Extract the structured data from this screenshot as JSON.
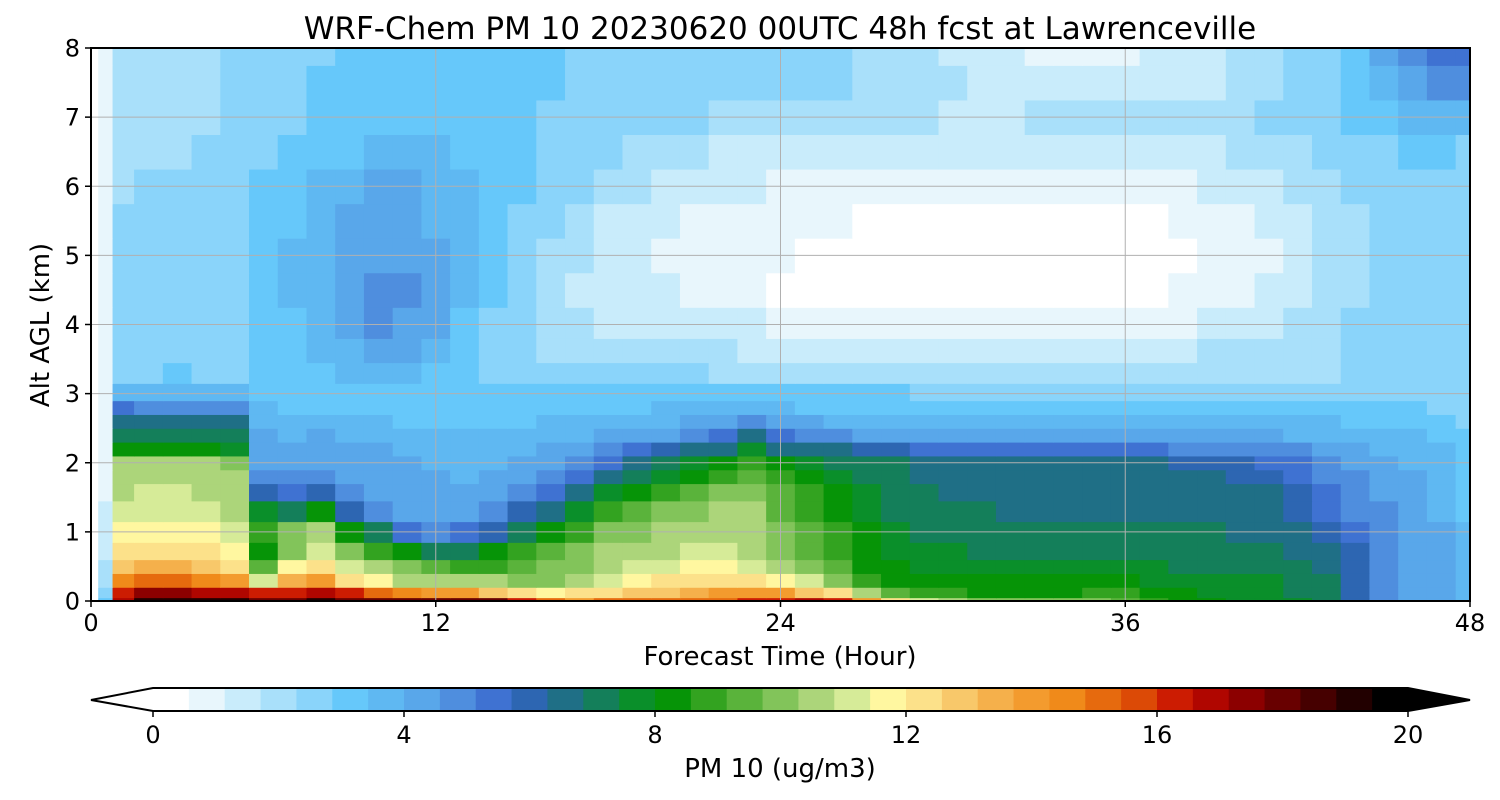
{
  "chart_data": {
    "type": "heatmap",
    "title": "WRF-Chem PM 10  20230620 00UTC 48h fcst at Lawrenceville",
    "xlabel": "Forecast Time (Hour)",
    "ylabel": "Alt AGL (km)",
    "xlim": [
      0,
      48
    ],
    "ylim": [
      0,
      8
    ],
    "xticks": [
      0,
      12,
      24,
      36,
      48
    ],
    "yticks": [
      0,
      1,
      2,
      3,
      4,
      5,
      6,
      7,
      8
    ],
    "grid": true,
    "colorbar": {
      "label": "PM 10  (ug/m3)",
      "orientation": "horizontal",
      "position": "bottom",
      "min": 0,
      "max": 20,
      "ticks": [
        0,
        4,
        8,
        12,
        16,
        20
      ],
      "extend": "both",
      "colors": [
        "#ffffff",
        "#e8f6fc",
        "#c9ecfb",
        "#a9e0fa",
        "#8ad4fa",
        "#66c8fa",
        "#5fb8f2",
        "#59a7ea",
        "#4f8ede",
        "#3f72d2",
        "#2d66b2",
        "#1f6f86",
        "#147f5a",
        "#0a8f2a",
        "#069407",
        "#33a320",
        "#5ab33b",
        "#82c45a",
        "#acd57a",
        "#d6eb98",
        "#fff7a0",
        "#fce18a",
        "#f8c86a",
        "#f5b04b",
        "#f39b2e",
        "#f08a1a",
        "#e66a0e",
        "#dc4a06",
        "#cc1c02",
        "#b00600",
        "#8c0000",
        "#680000",
        "#460000",
        "#220000",
        "#000000"
      ]
    },
    "z_units": "ug/m3",
    "x": [
      0,
      0.5,
      1,
      2,
      3,
      4,
      5,
      6,
      7,
      8,
      9,
      10,
      11,
      12,
      13,
      14,
      15,
      16,
      17,
      18,
      19,
      20,
      21,
      22,
      23,
      24,
      25,
      26,
      27,
      28,
      29,
      30,
      31,
      32,
      33,
      34,
      35,
      36,
      37,
      38,
      39,
      40,
      41,
      42,
      43,
      44,
      45,
      46,
      47,
      48
    ],
    "y": [
      0,
      0.1,
      0.3,
      0.5,
      0.7,
      1.0,
      1.3,
      1.6,
      1.8,
      2.0,
      2.2,
      2.4,
      2.6,
      2.8,
      3.0,
      3.3,
      3.6,
      4.0,
      4.5,
      5.0,
      5.5,
      6.0,
      6.5,
      7.0,
      7.5,
      8.0
    ],
    "z": [
      [
        0.0,
        3.0,
        17.0,
        19.0,
        19.0,
        19.0,
        19.0,
        18.0,
        18.0,
        19.0,
        18.0,
        18.0,
        18.0,
        18.0,
        18.0,
        18.0,
        16.0,
        15.0,
        14.0,
        15.0,
        15.0,
        15.0,
        15.0,
        15.0,
        16.0,
        16.0,
        17.0,
        16.0,
        14.0,
        12.0,
        11.0,
        10.5,
        10.0,
        10.0,
        10.0,
        10.0,
        10.0,
        9.5,
        9.0,
        8.5,
        8.0,
        7.5,
        7.5,
        7.5,
        7.0,
        6.0,
        5.0,
        4.5,
        4.0,
        3.5
      ],
      [
        0.0,
        2.5,
        16.0,
        17.5,
        17.5,
        17.0,
        17.0,
        16.0,
        16.5,
        17.0,
        16.0,
        15.0,
        14.5,
        14.0,
        14.0,
        13.0,
        12.0,
        11.5,
        12.0,
        12.5,
        13.0,
        13.0,
        13.5,
        14.0,
        14.0,
        14.0,
        13.0,
        12.0,
        10.5,
        9.5,
        9.0,
        8.8,
        8.5,
        8.5,
        8.5,
        8.5,
        9.0,
        9.0,
        8.5,
        8.0,
        7.8,
        7.5,
        7.5,
        7.3,
        7.0,
        6.0,
        5.0,
        4.5,
        4.0,
        3.5
      ],
      [
        0.0,
        2.0,
        14.5,
        15.0,
        15.0,
        14.5,
        14.0,
        11.0,
        13.5,
        14.0,
        12.5,
        11.5,
        10.5,
        10.5,
        10.5,
        10.5,
        10.0,
        10.0,
        10.5,
        11.0,
        11.5,
        12.0,
        12.5,
        12.5,
        12.0,
        11.5,
        11.0,
        10.0,
        9.0,
        8.5,
        8.3,
        8.2,
        8.0,
        8.0,
        8.0,
        8.0,
        8.2,
        8.0,
        7.8,
        7.5,
        7.5,
        7.5,
        7.5,
        7.3,
        7.0,
        6.0,
        5.0,
        4.5,
        4.0,
        3.5
      ],
      [
        0.0,
        1.8,
        13.0,
        13.5,
        13.5,
        13.0,
        12.5,
        9.5,
        11.5,
        12.5,
        11.0,
        10.5,
        10.0,
        9.5,
        9.0,
        9.0,
        9.5,
        9.8,
        10.2,
        10.5,
        11.0,
        11.3,
        11.5,
        11.5,
        11.0,
        10.5,
        10.0,
        9.5,
        8.5,
        8.0,
        7.8,
        7.7,
        7.5,
        7.5,
        7.5,
        7.5,
        7.5,
        7.5,
        7.5,
        7.3,
        7.2,
        7.2,
        7.2,
        7.0,
        6.8,
        6.0,
        5.0,
        4.5,
        4.0,
        3.5
      ],
      [
        0.0,
        1.5,
        12.0,
        12.5,
        12.5,
        12.0,
        11.5,
        8.5,
        10.0,
        11.0,
        10.0,
        9.0,
        8.0,
        7.0,
        7.0,
        8.0,
        8.8,
        9.2,
        9.8,
        10.3,
        10.6,
        10.8,
        11.0,
        11.0,
        10.5,
        10.0,
        9.5,
        9.0,
        8.3,
        7.8,
        7.5,
        7.5,
        7.4,
        7.3,
        7.2,
        7.2,
        7.2,
        7.2,
        7.2,
        7.1,
        7.0,
        7.0,
        7.0,
        6.8,
        6.5,
        5.8,
        5.0,
        4.5,
        4.0,
        3.5
      ],
      [
        0.0,
        1.3,
        11.5,
        11.8,
        11.8,
        11.5,
        11.0,
        9.0,
        10.0,
        10.5,
        8.5,
        7.0,
        5.5,
        5.0,
        5.2,
        6.0,
        7.0,
        8.0,
        9.0,
        9.8,
        10.2,
        10.5,
        10.6,
        10.7,
        10.5,
        10.0,
        9.3,
        8.7,
        8.0,
        7.5,
        7.3,
        7.2,
        7.2,
        7.0,
        7.0,
        7.0,
        7.0,
        7.0,
        7.0,
        7.0,
        6.9,
        6.8,
        6.8,
        6.5,
        6.0,
        5.3,
        4.8,
        4.5,
        4.0,
        3.5
      ],
      [
        0.0,
        1.2,
        11.0,
        11.3,
        11.3,
        11.0,
        10.8,
        7.5,
        7.0,
        8.5,
        6.0,
        5.0,
        4.3,
        4.0,
        4.2,
        4.8,
        5.8,
        6.8,
        7.8,
        8.8,
        9.5,
        10.0,
        10.2,
        10.5,
        10.3,
        9.7,
        9.0,
        8.3,
        7.8,
        7.3,
        7.0,
        7.0,
        7.0,
        6.8,
        6.8,
        6.8,
        6.8,
        6.8,
        6.8,
        6.8,
        6.7,
        6.6,
        6.5,
        6.2,
        5.6,
        5.0,
        4.6,
        4.3,
        3.9,
        3.4
      ],
      [
        0.0,
        1.1,
        10.8,
        11.0,
        11.0,
        10.8,
        10.5,
        6.0,
        5.5,
        6.0,
        4.8,
        4.4,
        4.2,
        4.0,
        4.0,
        4.3,
        4.8,
        5.5,
        6.5,
        7.5,
        8.2,
        8.8,
        9.3,
        9.8,
        9.8,
        9.2,
        8.6,
        8.0,
        7.5,
        7.2,
        7.0,
        6.8,
        6.8,
        6.6,
        6.6,
        6.6,
        6.6,
        6.6,
        6.6,
        6.6,
        6.5,
        6.4,
        6.3,
        6.0,
        5.3,
        4.8,
        4.4,
        4.1,
        3.8,
        3.3
      ],
      [
        0.0,
        1.0,
        10.6,
        10.8,
        10.8,
        10.6,
        10.4,
        5.0,
        4.8,
        4.8,
        4.5,
        4.3,
        4.1,
        4.0,
        3.9,
        4.0,
        4.3,
        4.8,
        5.5,
        6.5,
        7.3,
        7.8,
        8.3,
        8.8,
        9.2,
        8.6,
        8.0,
        7.6,
        7.3,
        7.0,
        6.8,
        6.7,
        6.6,
        6.5,
        6.5,
        6.5,
        6.5,
        6.5,
        6.5,
        6.4,
        6.4,
        6.2,
        6.0,
        5.6,
        5.0,
        4.6,
        4.2,
        4.0,
        3.7,
        3.2
      ],
      [
        0.0,
        1.0,
        10.3,
        10.5,
        10.5,
        10.4,
        10.0,
        4.5,
        4.4,
        4.5,
        4.3,
        4.2,
        4.0,
        3.9,
        3.8,
        3.8,
        4.0,
        4.3,
        4.8,
        5.6,
        6.5,
        7.2,
        7.6,
        8.0,
        8.8,
        8.0,
        7.6,
        7.3,
        7.1,
        6.9,
        6.7,
        6.6,
        6.5,
        6.4,
        6.4,
        6.4,
        6.4,
        6.4,
        6.3,
        6.2,
        6.1,
        5.9,
        5.7,
        5.3,
        4.8,
        4.4,
        4.1,
        3.9,
        3.6,
        3.1
      ],
      [
        0.0,
        1.0,
        8.0,
        8.3,
        8.5,
        8.0,
        7.8,
        4.2,
        4.1,
        4.2,
        4.1,
        4.0,
        3.9,
        3.8,
        3.7,
        3.7,
        3.8,
        4.0,
        4.3,
        4.8,
        5.3,
        5.8,
        6.3,
        6.8,
        7.8,
        6.8,
        6.5,
        6.3,
        6.0,
        5.8,
        5.6,
        5.5,
        5.4,
        5.3,
        5.3,
        5.2,
        5.2,
        5.2,
        5.2,
        5.1,
        5.0,
        4.9,
        4.8,
        4.6,
        4.3,
        4.1,
        3.9,
        3.7,
        3.5,
        3.0
      ],
      [
        0.0,
        1.0,
        7.2,
        7.3,
        7.3,
        7.0,
        7.0,
        4.0,
        3.9,
        4.0,
        3.9,
        3.8,
        3.7,
        3.6,
        3.5,
        3.5,
        3.6,
        3.8,
        3.9,
        4.1,
        4.3,
        4.5,
        4.8,
        5.5,
        6.8,
        5.5,
        5.0,
        4.7,
        4.5,
        4.4,
        4.3,
        4.3,
        4.3,
        4.3,
        4.3,
        4.3,
        4.3,
        4.3,
        4.3,
        4.3,
        4.2,
        4.1,
        4.0,
        3.9,
        3.8,
        3.7,
        3.6,
        3.5,
        3.3,
        2.9
      ],
      [
        0.0,
        1.0,
        6.5,
        6.5,
        6.6,
        6.3,
        6.4,
        3.8,
        3.6,
        3.6,
        3.5,
        3.5,
        3.4,
        3.3,
        3.3,
        3.3,
        3.4,
        3.5,
        3.6,
        3.7,
        3.8,
        3.9,
        4.0,
        4.2,
        4.8,
        4.2,
        4.0,
        3.9,
        3.8,
        3.7,
        3.7,
        3.6,
        3.6,
        3.6,
        3.6,
        3.6,
        3.6,
        3.6,
        3.6,
        3.6,
        3.6,
        3.6,
        3.6,
        3.5,
        3.5,
        3.4,
        3.3,
        3.2,
        3.0,
        2.7
      ],
      [
        0.0,
        1.0,
        5.2,
        4.8,
        5.0,
        4.6,
        4.8,
        3.5,
        3.3,
        3.2,
        3.1,
        3.0,
        3.0,
        3.0,
        3.0,
        3.0,
        3.1,
        3.2,
        3.3,
        3.4,
        3.4,
        3.5,
        3.5,
        3.5,
        3.6,
        3.5,
        3.4,
        3.4,
        3.3,
        3.3,
        3.2,
        3.2,
        3.2,
        3.2,
        3.2,
        3.2,
        3.2,
        3.2,
        3.2,
        3.2,
        3.2,
        3.2,
        3.2,
        3.1,
        3.1,
        3.0,
        3.0,
        2.9,
        2.8,
        2.5
      ],
      [
        0.0,
        1.0,
        3.8,
        3.6,
        3.9,
        3.5,
        3.7,
        3.2,
        3.0,
        2.9,
        2.9,
        2.9,
        2.9,
        2.9,
        2.9,
        2.9,
        3.0,
        3.0,
        3.0,
        3.0,
        3.0,
        3.0,
        3.0,
        3.0,
        3.0,
        3.0,
        3.0,
        3.0,
        2.9,
        2.9,
        2.8,
        2.8,
        2.7,
        2.7,
        2.7,
        2.7,
        2.6,
        2.6,
        2.6,
        2.6,
        2.6,
        2.6,
        2.6,
        2.6,
        2.6,
        2.6,
        2.6,
        2.6,
        2.5,
        2.3
      ],
      [
        0.0,
        0.9,
        2.8,
        2.8,
        3.0,
        2.8,
        2.8,
        3.0,
        3.2,
        3.4,
        3.6,
        3.8,
        3.7,
        3.4,
        3.0,
        2.7,
        2.5,
        2.4,
        2.4,
        2.3,
        2.3,
        2.3,
        2.3,
        2.2,
        2.2,
        2.2,
        2.2,
        2.2,
        2.2,
        2.1,
        2.1,
        2.1,
        2.1,
        2.1,
        2.1,
        2.1,
        2.1,
        2.1,
        2.1,
        2.1,
        2.1,
        2.1,
        2.1,
        2.2,
        2.2,
        2.3,
        2.4,
        2.5,
        2.5,
        2.3
      ],
      [
        0.0,
        0.9,
        2.6,
        2.6,
        2.7,
        2.7,
        2.8,
        3.0,
        3.3,
        3.6,
        3.9,
        4.2,
        4.1,
        3.7,
        3.2,
        2.8,
        2.4,
        2.2,
        2.1,
        2.0,
        2.0,
        1.9,
        1.8,
        1.8,
        1.7,
        1.7,
        1.6,
        1.6,
        1.6,
        1.5,
        1.5,
        1.5,
        1.5,
        1.5,
        1.5,
        1.5,
        1.5,
        1.5,
        1.6,
        1.7,
        1.8,
        1.9,
        2.0,
        2.1,
        2.2,
        2.3,
        2.5,
        2.6,
        2.6,
        2.4
      ],
      [
        0.0,
        0.9,
        2.5,
        2.5,
        2.6,
        2.6,
        2.8,
        3.0,
        3.4,
        3.8,
        4.2,
        4.6,
        4.5,
        4.0,
        3.4,
        2.8,
        2.3,
        2.0,
        1.8,
        1.7,
        1.6,
        1.5,
        1.4,
        1.3,
        1.2,
        1.1,
        1.0,
        0.9,
        0.9,
        0.9,
        0.8,
        0.8,
        0.8,
        0.8,
        0.8,
        0.8,
        0.8,
        0.9,
        1.0,
        1.1,
        1.3,
        1.5,
        1.7,
        1.9,
        2.1,
        2.3,
        2.5,
        2.6,
        2.6,
        2.4
      ],
      [
        0.0,
        0.9,
        2.4,
        2.5,
        2.6,
        2.6,
        2.8,
        3.1,
        3.5,
        3.9,
        4.3,
        4.7,
        4.6,
        4.1,
        3.5,
        2.9,
        2.4,
        2.0,
        1.7,
        1.5,
        1.4,
        1.2,
        1.0,
        0.8,
        0.6,
        0.5,
        0.4,
        0.3,
        0.3,
        0.2,
        0.2,
        0.2,
        0.2,
        0.2,
        0.3,
        0.3,
        0.3,
        0.4,
        0.5,
        0.6,
        0.8,
        1.0,
        1.2,
        1.5,
        1.8,
        2.1,
        2.4,
        2.6,
        2.6,
        2.4
      ],
      [
        0.0,
        0.9,
        2.3,
        2.4,
        2.5,
        2.6,
        2.8,
        3.1,
        3.5,
        3.9,
        4.3,
        4.5,
        4.4,
        4.0,
        3.6,
        3.1,
        2.6,
        2.2,
        1.8,
        1.5,
        1.3,
        1.1,
        0.9,
        0.8,
        0.7,
        0.6,
        0.5,
        0.4,
        0.3,
        0.2,
        0.2,
        0.1,
        0.1,
        0.1,
        0.1,
        0.1,
        0.2,
        0.2,
        0.3,
        0.4,
        0.6,
        0.8,
        1.1,
        1.4,
        1.8,
        2.1,
        2.4,
        2.6,
        2.6,
        2.4
      ],
      [
        0.0,
        0.9,
        2.3,
        2.4,
        2.4,
        2.5,
        2.7,
        3.0,
        3.4,
        3.7,
        4.0,
        4.2,
        4.1,
        3.9,
        3.6,
        3.2,
        2.8,
        2.4,
        2.0,
        1.7,
        1.5,
        1.3,
        1.1,
        1.0,
        0.9,
        0.8,
        0.7,
        0.6,
        0.5,
        0.4,
        0.3,
        0.3,
        0.3,
        0.3,
        0.3,
        0.3,
        0.3,
        0.4,
        0.5,
        0.6,
        0.8,
        1.0,
        1.3,
        1.6,
        1.9,
        2.2,
        2.4,
        2.6,
        2.6,
        2.4
      ],
      [
        0.0,
        0.9,
        2.2,
        2.3,
        2.3,
        2.4,
        2.6,
        2.9,
        3.2,
        3.5,
        3.8,
        4.0,
        4.0,
        3.8,
        3.5,
        3.2,
        2.9,
        2.6,
        2.3,
        2.0,
        1.8,
        1.6,
        1.4,
        1.3,
        1.2,
        1.1,
        1.0,
        0.9,
        0.8,
        0.8,
        0.8,
        0.8,
        0.8,
        0.8,
        0.8,
        0.8,
        0.8,
        0.9,
        1.0,
        1.1,
        1.2,
        1.4,
        1.6,
        1.8,
        2.1,
        2.3,
        2.5,
        2.6,
        2.5,
        2.3
      ],
      [
        0.0,
        0.9,
        2.1,
        2.2,
        2.2,
        2.3,
        2.5,
        2.7,
        3.0,
        3.2,
        3.4,
        3.6,
        3.7,
        3.6,
        3.4,
        3.2,
        2.9,
        2.7,
        2.5,
        2.3,
        2.1,
        1.9,
        1.8,
        1.7,
        1.6,
        1.5,
        1.4,
        1.4,
        1.4,
        1.4,
        1.4,
        1.4,
        1.4,
        1.4,
        1.4,
        1.4,
        1.4,
        1.5,
        1.5,
        1.6,
        1.7,
        1.8,
        2.0,
        2.1,
        2.3,
        2.5,
        2.7,
        2.9,
        3.0,
        2.8
      ],
      [
        0.0,
        0.9,
        2.0,
        2.1,
        2.1,
        2.2,
        2.4,
        2.6,
        2.8,
        3.0,
        3.2,
        3.3,
        3.4,
        3.4,
        3.3,
        3.1,
        2.9,
        2.8,
        2.7,
        2.6,
        2.5,
        2.4,
        2.3,
        2.2,
        2.2,
        2.2,
        2.1,
        2.1,
        2.0,
        1.9,
        1.8,
        1.7,
        1.7,
        1.7,
        1.8,
        1.8,
        1.9,
        1.9,
        2.0,
        2.0,
        2.1,
        2.2,
        2.3,
        2.4,
        2.6,
        2.9,
        3.2,
        3.6,
        3.9,
        3.8
      ],
      [
        0.0,
        0.9,
        2.0,
        2.0,
        2.0,
        2.1,
        2.3,
        2.5,
        2.7,
        2.9,
        3.0,
        3.1,
        3.2,
        3.2,
        3.2,
        3.1,
        3.0,
        2.9,
        2.8,
        2.7,
        2.7,
        2.6,
        2.6,
        2.6,
        2.5,
        2.5,
        2.4,
        2.3,
        2.2,
        2.1,
        2.0,
        1.8,
        1.6,
        1.4,
        1.3,
        1.3,
        1.3,
        1.4,
        1.5,
        1.6,
        1.7,
        1.9,
        2.1,
        2.4,
        2.7,
        3.1,
        3.6,
        4.2,
        4.8,
        5.0
      ],
      [
        0.0,
        0.9,
        2.0,
        2.0,
        2.0,
        2.1,
        2.3,
        2.5,
        2.6,
        2.8,
        2.9,
        3.0,
        3.1,
        3.1,
        3.1,
        3.0,
        3.0,
        2.9,
        2.8,
        2.8,
        2.7,
        2.7,
        2.6,
        2.6,
        2.5,
        2.5,
        2.4,
        2.3,
        2.2,
        2.0,
        1.8,
        1.6,
        1.4,
        1.2,
        1.1,
        1.0,
        1.0,
        1.1,
        1.2,
        1.4,
        1.6,
        1.8,
        2.1,
        2.4,
        2.8,
        3.3,
        4.0,
        4.8,
        5.3,
        5.6
      ]
    ]
  }
}
